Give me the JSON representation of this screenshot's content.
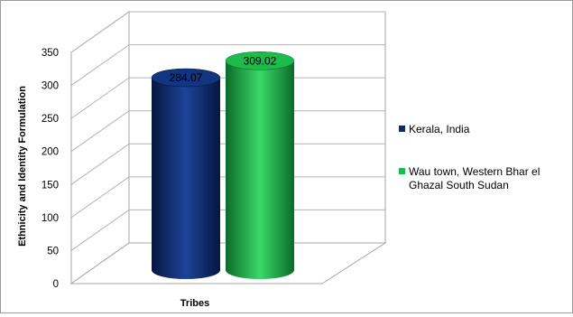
{
  "chart_data": {
    "type": "bar",
    "style": "3d-cylinder",
    "title": "",
    "xlabel": "Tribes",
    "ylabel": "Ethnicity and Identity Formulation",
    "ylim": [
      0,
      350
    ],
    "y_ticks": [
      0,
      50,
      100,
      150,
      200,
      250,
      300,
      350
    ],
    "y_tick_labels": [
      "0",
      "50",
      "100",
      "150",
      "200",
      "250",
      "300",
      "350"
    ],
    "grid": true,
    "legend_position": "right",
    "series": [
      {
        "name": "Kerala, India",
        "value": 284.07,
        "label": "284.07",
        "color": "#0d2a6e"
      },
      {
        "name": "Wau town, Western Bhar el Ghazal South Sudan",
        "value": 309.02,
        "label": "309.02",
        "color": "#1dba4c"
      }
    ],
    "legend": [
      {
        "lines": [
          "Kerala, India"
        ],
        "color": "#0d2a6e"
      },
      {
        "lines": [
          "Wau town, Western Bhar el",
          "Ghazal South Sudan"
        ],
        "color": "#1dba4c"
      }
    ]
  }
}
